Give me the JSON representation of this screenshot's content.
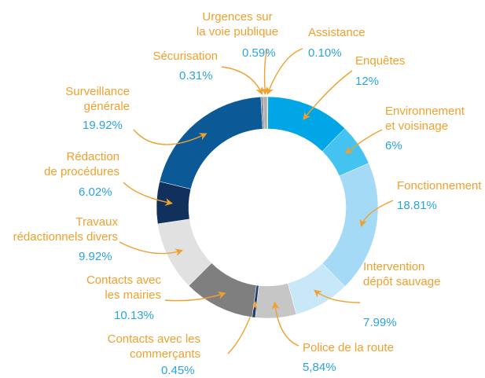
{
  "chart_data": {
    "type": "donut",
    "categories": [
      "Assistance",
      "Enquêtes",
      "Environnement\net voisinage",
      "Fonctionnement",
      "Intervention\ndépôt sauvage",
      "Police de la route",
      "Contacts avec les\ncommerçants",
      "Contacts avec\nles mairies",
      "Travaux\nrédactionnels divers",
      "Rédaction\nde procédures",
      "Surveillance\ngénérale",
      "Sécurisation",
      "Urgences sur\nla voie publique"
    ],
    "values": [
      0.1,
      12,
      6,
      18.81,
      7.99,
      5.84,
      0.45,
      10.13,
      9.92,
      6.02,
      19.92,
      0.31,
      0.59
    ],
    "value_labels": [
      "0.10%",
      "12%",
      "6%",
      "18.81%",
      "7.99%",
      "5,84%",
      "0.45%",
      "10.13%",
      "9.92%",
      "6.02%",
      "19.92%",
      "0.31%",
      "0.59%"
    ],
    "colors": [
      "#6d6e71",
      "#00a6e6",
      "#45c3f0",
      "#a4daf6",
      "#c8e8f9",
      "#c6c6c6",
      "#1f3d6b",
      "#7f7f80",
      "#e1e1e2",
      "#12305c",
      "#0b5a97",
      "#8a8a8c",
      "#b0b0b0"
    ]
  }
}
